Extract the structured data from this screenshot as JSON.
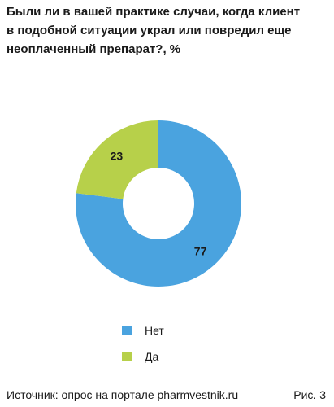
{
  "chart_data": {
    "type": "pie",
    "title_lines": [
      "Были ли в вашей практике случаи, когда клиент",
      "в подобной ситуации украл или повредил еще",
      "неоплаченный препарат?, %"
    ],
    "categories": [
      "Нет",
      "Да"
    ],
    "values": [
      77,
      23
    ],
    "value_labels": [
      "77",
      "23"
    ],
    "colors": [
      "#4aa3df",
      "#b7d04a"
    ],
    "donut": true,
    "legend_position": "bottom"
  },
  "footer": {
    "source": "Источник: опрос на портале pharmvestnik.ru",
    "figure": "Рис. 3"
  }
}
